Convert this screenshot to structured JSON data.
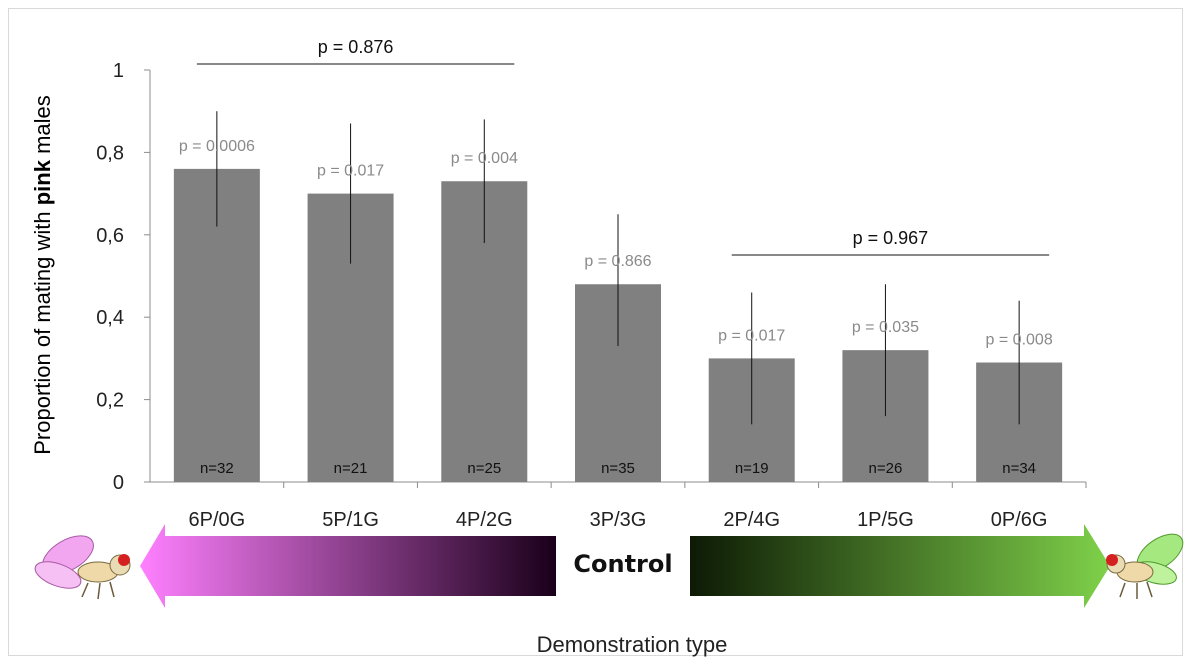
{
  "chart_data": {
    "type": "bar",
    "ylabel_prefix": "Proportion of mating with ",
    "ylabel_bold": "pink",
    "ylabel_suffix": " males",
    "xlabel": "Demonstration type",
    "ylim": [
      0,
      1
    ],
    "yticks": [
      "0",
      "0,2",
      "0,4",
      "0,6",
      "0,8",
      "1"
    ],
    "categories": [
      "6P/0G",
      "5P/1G",
      "4P/2G",
      "3P/3G",
      "2P/4G",
      "1P/5G",
      "0P/6G"
    ],
    "values": [
      0.76,
      0.7,
      0.73,
      0.48,
      0.3,
      0.32,
      0.29
    ],
    "error_low": [
      0.62,
      0.53,
      0.58,
      0.33,
      0.14,
      0.16,
      0.14
    ],
    "error_high": [
      0.9,
      0.87,
      0.88,
      0.65,
      0.46,
      0.48,
      0.44
    ],
    "p_values": [
      "p = 0.0006",
      "p = 0.017",
      "p = 0.004",
      "p = 0.866",
      "p = 0.017",
      "p = 0.035",
      "p = 0.008"
    ],
    "n_labels": [
      "n=32",
      "n=21",
      "n=25",
      "n=35",
      "n=19",
      "n=26",
      "n=34"
    ],
    "brackets": [
      {
        "label": "p = 0.876",
        "from": 0,
        "to": 2
      },
      {
        "label": "p = 0.967",
        "from": 4,
        "to": 6
      }
    ],
    "bar_color": "#808080",
    "grid": false,
    "legend": "none",
    "arrow_label": "Control",
    "arrow_left_colors": [
      "#ff80ff",
      "#1a001a"
    ],
    "arrow_right_colors": [
      "#0d1a05",
      "#7fd14a"
    ]
  }
}
